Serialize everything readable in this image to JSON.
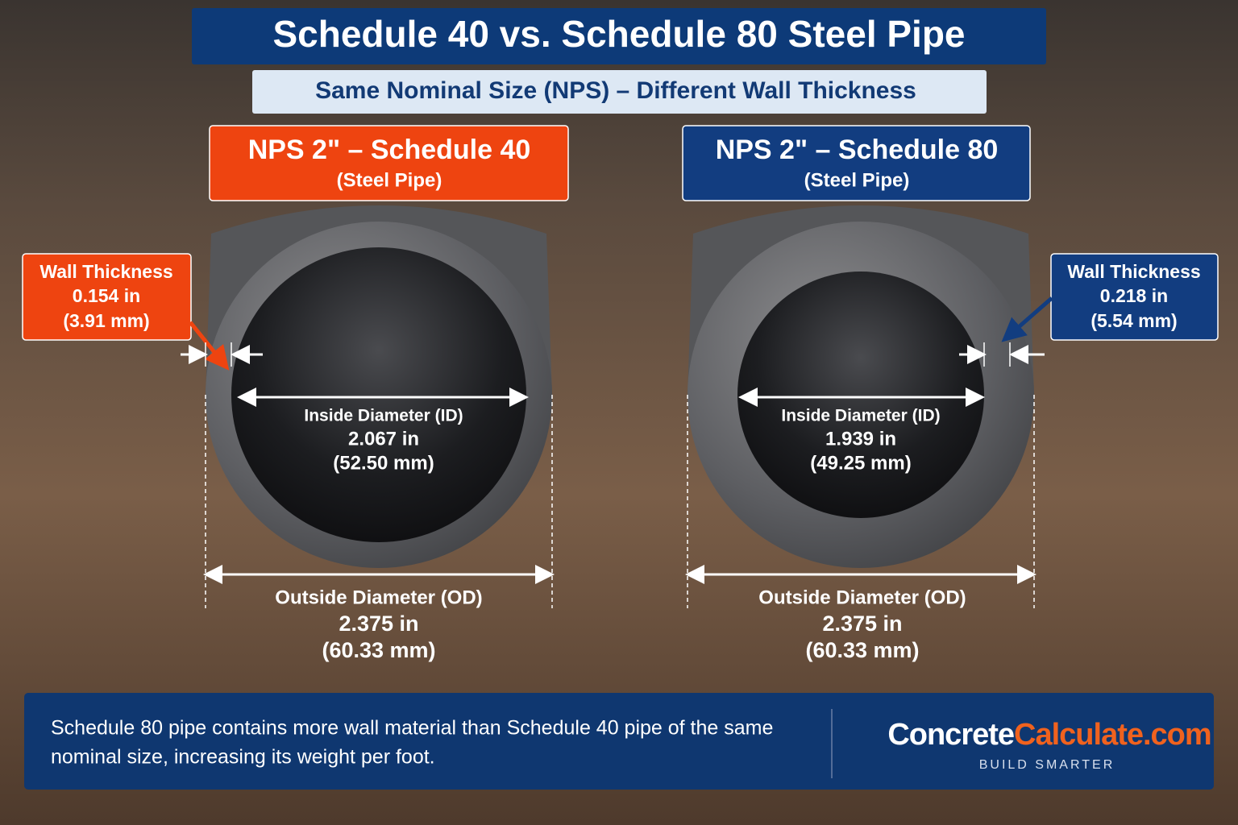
{
  "header": {
    "title": "Schedule 40 vs. Schedule 80 Steel Pipe",
    "subtitle": "Same Nominal Size (NPS) –  Different Wall Thickness"
  },
  "pipes": [
    {
      "heading": "NPS 2\" – Schedule 40",
      "material": "(Steel Pipe)",
      "wall": {
        "label": "Wall Thickness",
        "inches": "0.154 in",
        "mm": "(3.91 mm)"
      },
      "inside": {
        "label": "Inside Diameter (ID)",
        "inches": "2.067 in",
        "mm": "(52.50 mm)"
      },
      "outside": {
        "label": "Outside Diameter (OD)",
        "inches": "2.375 in",
        "mm": "(60.33 mm)"
      }
    },
    {
      "heading": "NPS 2\" – Schedule 80",
      "material": "(Steel Pipe)",
      "wall": {
        "label": "Wall Thickness",
        "inches": "0.218 in",
        "mm": "(5.54 mm)"
      },
      "inside": {
        "label": "Inside Diameter (ID)",
        "inches": "1.939 in",
        "mm": "(49.25 mm)"
      },
      "outside": {
        "label": "Outside Diameter (OD)",
        "inches": "2.375 in",
        "mm": "(60.33 mm)"
      }
    }
  ],
  "footer": {
    "lines": [
      "Schedule 80 pipe contains more wall material than Schedule 40 pipe of the same",
      "nominal size, increasing its weight per foot."
    ],
    "brand": {
      "part1": "Concrete",
      "part2": "Calculate.com",
      "tagline": "BUILD SMARTER"
    }
  }
}
